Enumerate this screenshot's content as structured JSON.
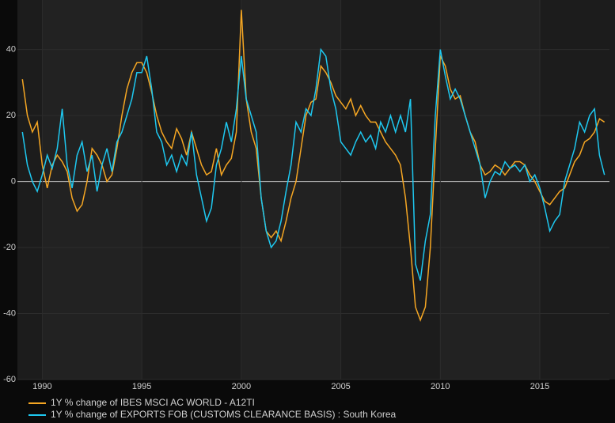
{
  "chart_data": {
    "type": "line",
    "x": [
      1989,
      1989.25,
      1989.5,
      1989.75,
      1990,
      1990.25,
      1990.5,
      1990.75,
      1991,
      1991.25,
      1991.5,
      1991.75,
      1992,
      1992.25,
      1992.5,
      1992.75,
      1993,
      1993.25,
      1993.5,
      1993.75,
      1994,
      1994.25,
      1994.5,
      1994.75,
      1995,
      1995.25,
      1995.5,
      1995.75,
      1996,
      1996.25,
      1996.5,
      1996.75,
      1997,
      1997.25,
      1997.5,
      1997.75,
      1998,
      1998.25,
      1998.5,
      1998.75,
      1999,
      1999.25,
      1999.5,
      1999.75,
      2000,
      2000.25,
      2000.5,
      2000.75,
      2001,
      2001.25,
      2001.5,
      2001.75,
      2002,
      2002.25,
      2002.5,
      2002.75,
      2003,
      2003.25,
      2003.5,
      2003.75,
      2004,
      2004.25,
      2004.5,
      2004.75,
      2005,
      2005.25,
      2005.5,
      2005.75,
      2006,
      2006.25,
      2006.5,
      2006.75,
      2007,
      2007.25,
      2007.5,
      2007.75,
      2008,
      2008.25,
      2008.5,
      2008.75,
      2009,
      2009.25,
      2009.5,
      2009.75,
      2010,
      2010.25,
      2010.5,
      2010.75,
      2011,
      2011.25,
      2011.5,
      2011.75,
      2012,
      2012.25,
      2012.5,
      2012.75,
      2013,
      2013.25,
      2013.5,
      2013.75,
      2014,
      2014.25,
      2014.5,
      2014.75,
      2015,
      2015.25,
      2015.5,
      2015.75,
      2016,
      2016.25,
      2016.5,
      2016.75,
      2017,
      2017.25,
      2017.5,
      2017.75,
      2018,
      2018.25
    ],
    "series": [
      {
        "name": "1Y % change of IBES MSCI AC WORLD - A12TI",
        "color": "#f5a623",
        "values": [
          31,
          20,
          15,
          18,
          5,
          -2,
          5,
          8,
          6,
          3,
          -5,
          -9,
          -7,
          0,
          10,
          8,
          5,
          0,
          2,
          10,
          20,
          28,
          33,
          36,
          36,
          33,
          27,
          20,
          15,
          12,
          10,
          16,
          13,
          8,
          15,
          10,
          5,
          2,
          3,
          10,
          2,
          5,
          7,
          15,
          52,
          25,
          15,
          10,
          -5,
          -15,
          -17,
          -15,
          -18,
          -12,
          -5,
          0,
          10,
          20,
          24,
          25,
          35,
          33,
          30,
          26,
          24,
          22,
          25,
          20,
          23,
          20,
          18,
          18,
          15,
          12,
          10,
          8,
          5,
          -5,
          -20,
          -38,
          -42,
          -38,
          -20,
          10,
          38,
          35,
          28,
          25,
          26,
          20,
          15,
          12,
          5,
          2,
          3,
          5,
          4,
          2,
          4,
          6,
          6,
          5,
          2,
          0,
          -3,
          -6,
          -7,
          -5,
          -3,
          -2,
          2,
          6,
          8,
          12,
          13,
          15,
          19,
          18
        ]
      },
      {
        "name": "1Y % change of EXPORTS FOB (CUSTOMS CLEARANCE BASIS) : South Korea",
        "color": "#1ec8f0",
        "values": [
          15,
          5,
          0,
          -3,
          2,
          8,
          4,
          10,
          22,
          5,
          -2,
          8,
          12,
          3,
          8,
          -3,
          5,
          10,
          3,
          12,
          15,
          20,
          25,
          33,
          33,
          38,
          28,
          15,
          12,
          5,
          8,
          3,
          8,
          5,
          15,
          2,
          -5,
          -12,
          -8,
          5,
          10,
          18,
          12,
          22,
          38,
          25,
          20,
          15,
          -5,
          -15,
          -20,
          -18,
          -12,
          -3,
          5,
          18,
          15,
          22,
          20,
          28,
          40,
          38,
          28,
          22,
          12,
          10,
          8,
          12,
          15,
          12,
          14,
          10,
          18,
          15,
          20,
          15,
          20,
          15,
          25,
          -25,
          -30,
          -18,
          -10,
          20,
          40,
          32,
          25,
          28,
          25,
          20,
          15,
          10,
          5,
          -5,
          0,
          3,
          2,
          6,
          4,
          5,
          3,
          5,
          0,
          2,
          -2,
          -8,
          -15,
          -12,
          -10,
          0,
          5,
          10,
          18,
          15,
          20,
          22,
          8,
          2
        ]
      }
    ],
    "xlim": [
      1988.75,
      2018.5
    ],
    "xticks": [
      1990,
      1995,
      2000,
      2005,
      2010,
      2015
    ],
    "ylim": [
      -60,
      55
    ],
    "yticks": [
      -60,
      -40,
      -20,
      0,
      20,
      40
    ],
    "grid": true
  }
}
